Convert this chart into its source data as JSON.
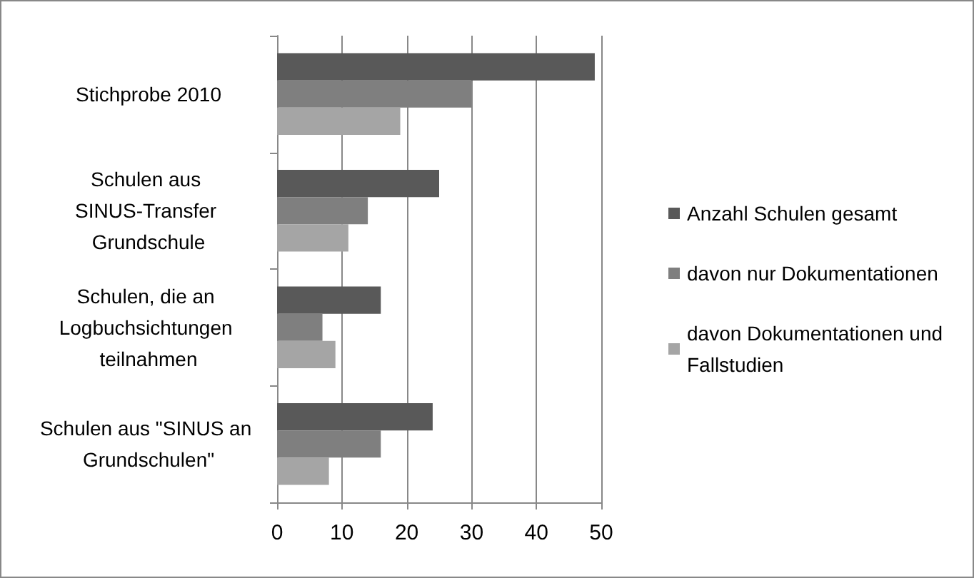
{
  "chart_data": {
    "type": "bar",
    "orientation": "horizontal",
    "categories": [
      "Stichprobe 2010",
      "Schulen aus SINUS-Transfer Grundschule",
      "Schulen, die an Logbuchsichtungen teilnahmen",
      "Schulen aus \"SINUS an Grundschulen\""
    ],
    "series": [
      {
        "name": "Anzahl Schulen gesamt",
        "color": "#595959",
        "values": [
          49,
          25,
          16,
          24
        ]
      },
      {
        "name": "davon nur Dokumentationen",
        "color": "#7f7f7f",
        "values": [
          30,
          14,
          7,
          16
        ]
      },
      {
        "name": "davon Dokumentationen und Fallstudien",
        "color": "#a5a5a5",
        "values": [
          19,
          11,
          9,
          8
        ]
      }
    ],
    "xlim": [
      0,
      50
    ],
    "xticks": [
      0,
      10,
      20,
      30,
      40,
      50
    ],
    "grid": "x",
    "legend": "right"
  }
}
